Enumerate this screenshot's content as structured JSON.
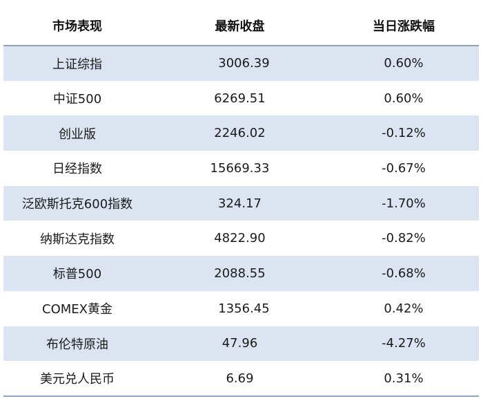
{
  "table": {
    "headers": [
      "市场表现",
      "最新收盘",
      "当日涨跌幅"
    ],
    "rows": [
      [
        "上证综指",
        "3006.39",
        "0.60%"
      ],
      [
        "中证500",
        "6269.51",
        "0.60%"
      ],
      [
        "创业版",
        "2246.02",
        "-0.12%"
      ],
      [
        "日经指数",
        "15669.33",
        "-0.67%"
      ],
      [
        "泛欧斯托克600指数",
        "324.17",
        "-1.70%"
      ],
      [
        "纳斯达克指数",
        "4822.90",
        "-0.82%"
      ],
      [
        "标普500",
        "2088.55",
        "-0.68%"
      ],
      [
        "COMEX黄金",
        "1356.45",
        "0.42%"
      ],
      [
        "布伦特原油",
        "47.96",
        "-4.27%"
      ],
      [
        "美元兑人民币",
        "6.69",
        "0.31%"
      ]
    ]
  },
  "colors": {
    "shaded_row": "#dbe4f0",
    "rule": "#8fa3bb",
    "text": "#1a1a1a"
  }
}
